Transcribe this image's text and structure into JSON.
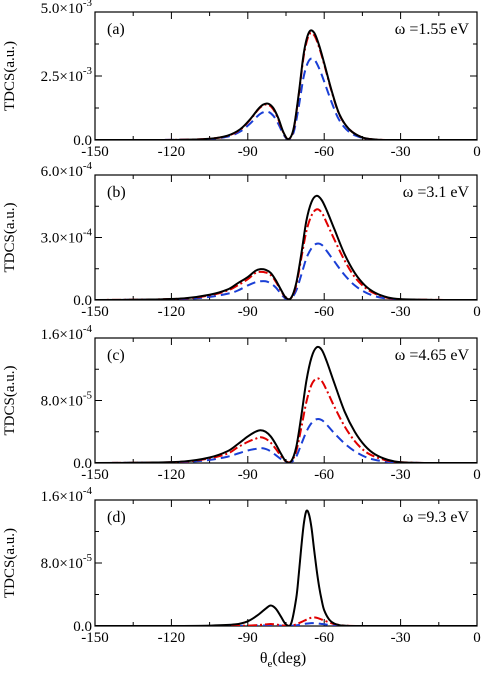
{
  "figure": {
    "xlabel_main": "θ",
    "xlabel_sub": "e",
    "xlabel_unit": "(deg)"
  },
  "series_styles": [
    {
      "color": "#000000",
      "dash": "solid"
    },
    {
      "color": "#e00000",
      "dash": "dash-dot"
    },
    {
      "color": "#1a3fd6",
      "dash": "dashed"
    }
  ],
  "chart_data": [
    {
      "type": "line",
      "panel_label": "(a)",
      "annotation_prefix": "ω =",
      "annotation_value": "1.55 eV",
      "ylabel": "TDCS(a.u.)",
      "xlim": [
        -150,
        0
      ],
      "xticks": [
        -150,
        -120,
        -90,
        -60,
        -30,
        0
      ],
      "xtick_labels": [
        "-150",
        "-120",
        "-90",
        "-60",
        "-30",
        "0"
      ],
      "ylim": [
        0,
        0.005
      ],
      "yticks": [
        {
          "value": 0,
          "mantissa": "0.0",
          "exponent": ""
        },
        {
          "value": 0.0025,
          "mantissa": "2.5×10",
          "exponent": "-3"
        },
        {
          "value": 0.005,
          "mantissa": "5.0×10",
          "exponent": "-3"
        }
      ],
      "x": [
        -150,
        -130,
        -115,
        -105,
        -98,
        -93,
        -89,
        -86,
        -84,
        -82,
        -80,
        -78,
        -76,
        -74,
        -72,
        -70,
        -68,
        -66,
        -64,
        -62,
        -60,
        -57,
        -54,
        -50,
        -45,
        -40,
        -35,
        -30,
        -20,
        -10,
        0
      ],
      "series": [
        {
          "values": [
            0,
            0,
            1e-05,
            5e-05,
            0.00017,
            0.00042,
            0.00082,
            0.0012,
            0.00138,
            0.00142,
            0.00125,
            0.00085,
            0.0003,
            3e-05,
            0.00045,
            0.0018,
            0.0034,
            0.0042,
            0.0042,
            0.0037,
            0.003,
            0.0019,
            0.001,
            0.0004,
            0.0001,
            2e-05,
            0,
            0,
            0,
            0,
            0
          ]
        },
        {
          "values": [
            0,
            0,
            1e-05,
            5e-05,
            0.00016,
            0.0004,
            0.0008,
            0.00118,
            0.00135,
            0.00138,
            0.0012,
            0.0008,
            0.00028,
            3e-05,
            0.00042,
            0.00175,
            0.0033,
            0.0041,
            0.0041,
            0.00362,
            0.00295,
            0.00187,
            0.00098,
            0.0004,
            0.0001,
            2e-05,
            0,
            0,
            0,
            0,
            0
          ]
        },
        {
          "values": [
            0,
            0,
            1e-05,
            4e-05,
            0.00013,
            0.00033,
            0.00065,
            0.00095,
            0.00108,
            0.0011,
            0.00095,
            0.00063,
            0.00022,
            2e-05,
            0.0003,
            0.0013,
            0.0025,
            0.0031,
            0.00315,
            0.0028,
            0.00228,
            0.00145,
            0.00076,
            0.0003,
            8e-05,
            1e-05,
            0,
            0,
            0,
            0,
            0
          ]
        }
      ]
    },
    {
      "type": "line",
      "panel_label": "(b)",
      "annotation_prefix": "ω =",
      "annotation_value": "3.1 eV",
      "ylabel": "TDCS(a.u.)",
      "xlim": [
        -150,
        0
      ],
      "xticks": [
        -150,
        -120,
        -90,
        -60,
        -30,
        0
      ],
      "xtick_labels": [
        "-150",
        "-120",
        "-90",
        "-60",
        "-30",
        "0"
      ],
      "ylim": [
        0,
        0.0006
      ],
      "yticks": [
        {
          "value": 0,
          "mantissa": "0.0",
          "exponent": ""
        },
        {
          "value": 0.0003,
          "mantissa": "3.0×10",
          "exponent": "-4"
        },
        {
          "value": 0.0006,
          "mantissa": "6.0×10",
          "exponent": "-4"
        }
      ],
      "x": [
        -150,
        -130,
        -115,
        -105,
        -98,
        -94,
        -90,
        -87,
        -85,
        -83,
        -81,
        -79,
        -77,
        -75,
        -73,
        -71,
        -69,
        -67,
        -65,
        -63,
        -61,
        -59,
        -56,
        -52,
        -48,
        -44,
        -40,
        -35,
        -30,
        -20,
        -10,
        0
      ],
      "series": [
        {
          "values": [
            0,
            2e-06,
            8e-06,
            2.5e-05,
            5e-05,
            8e-05,
            0.00011,
            0.00014,
            0.000148,
            0.000145,
            0.00013,
            9.5e-05,
            5e-05,
            1e-05,
            1e-05,
            8e-05,
            0.00022,
            0.00038,
            0.00047,
            0.0005,
            0.00048,
            0.00043,
            0.00034,
            0.00022,
            0.00013,
            7e-05,
            3.5e-05,
            1.2e-05,
            4e-06,
            1e-06,
            0,
            0
          ]
        },
        {
          "values": [
            0,
            2e-06,
            7e-06,
            2.2e-05,
            4.5e-05,
            7e-05,
            0.0001,
            0.00013,
            0.000135,
            0.000132,
            0.00012,
            8.8e-05,
            4.5e-05,
            1e-05,
            1e-05,
            7e-05,
            0.0002,
            0.00033,
            0.000405,
            0.000435,
            0.00042,
            0.00037,
            0.00029,
            0.00019,
            0.00011,
            6e-05,
            3e-05,
            1e-05,
            3e-06,
            1e-06,
            0,
            0
          ]
        },
        {
          "values": [
            0,
            1e-06,
            5e-06,
            1.5e-05,
            3e-05,
            4.5e-05,
            7e-05,
            8.5e-05,
            9e-05,
            9e-05,
            8e-05,
            6e-05,
            3e-05,
            5e-06,
            7e-06,
            4.5e-05,
            0.00012,
            0.0002,
            0.000248,
            0.00027,
            0.000265,
            0.000235,
            0.000185,
            0.00012,
            7e-05,
            3.8e-05,
            1.8e-05,
            6e-06,
            2e-06,
            0,
            0,
            0
          ]
        }
      ]
    },
    {
      "type": "line",
      "panel_label": "(c)",
      "annotation_prefix": "ω =",
      "annotation_value": "4.65 eV",
      "ylabel": "TDCS(a.u.)",
      "xlim": [
        -150,
        0
      ],
      "xticks": [
        -150,
        -120,
        -90,
        -60,
        -30,
        0
      ],
      "xtick_labels": [
        "-150",
        "-120",
        "-90",
        "-60",
        "-30",
        "0"
      ],
      "ylim": [
        0,
        0.00016
      ],
      "yticks": [
        {
          "value": 0,
          "mantissa": "0.0",
          "exponent": ""
        },
        {
          "value": 8e-05,
          "mantissa": "8.0×10",
          "exponent": "-5"
        },
        {
          "value": 0.00016,
          "mantissa": "1.6×10",
          "exponent": "-4"
        }
      ],
      "x": [
        -150,
        -130,
        -115,
        -105,
        -98,
        -94,
        -90,
        -87,
        -85,
        -83,
        -81,
        -79,
        -77,
        -75,
        -73,
        -71,
        -69,
        -67,
        -65,
        -63,
        -61,
        -59,
        -56,
        -52,
        -48,
        -44,
        -40,
        -35,
        -30,
        -20,
        -10,
        0
      ],
      "series": [
        {
          "values": [
            0,
            5e-07,
            2e-06,
            7e-06,
            1.5e-05,
            2.4e-05,
            3.4e-05,
            4e-05,
            4.2e-05,
            4e-05,
            3.4e-05,
            2.4e-05,
            1.2e-05,
            2e-06,
            2e-06,
            2e-05,
            6e-05,
            0.000105,
            0.000135,
            0.000148,
            0.000145,
            0.00013,
            0.000102,
            6.6e-05,
            4e-05,
            2.2e-05,
            1.1e-05,
            4e-06,
            1e-06,
            0,
            0,
            0
          ]
        },
        {
          "values": [
            0,
            4e-07,
            1.7e-06,
            6e-06,
            1.2e-05,
            2e-05,
            2.7e-05,
            3.1e-05,
            3.3e-05,
            3.1e-05,
            2.6e-05,
            1.8e-05,
            9e-06,
            2e-06,
            2e-06,
            1.5e-05,
            4.5e-05,
            7.8e-05,
            0.0001,
            0.000108,
            0.000105,
            9.3e-05,
            7.2e-05,
            4.7e-05,
            2.8e-05,
            1.5e-05,
            8e-06,
            3e-06,
            1e-06,
            0,
            0,
            0
          ]
        },
        {
          "values": [
            0,
            3e-07,
            1.2e-06,
            4e-06,
            8e-06,
            1.2e-05,
            1.6e-05,
            1.8e-05,
            1.9e-05,
            1.8e-05,
            1.5e-05,
            1e-05,
            5e-06,
            1e-06,
            1e-06,
            8e-06,
            2.4e-05,
            4e-05,
            5.1e-05,
            5.6e-05,
            5.5e-05,
            4.9e-05,
            3.8e-05,
            2.5e-05,
            1.5e-05,
            8e-06,
            4e-06,
            1.5e-06,
            5e-07,
            0,
            0,
            0
          ]
        }
      ]
    },
    {
      "type": "line",
      "panel_label": "(d)",
      "annotation_prefix": "ω =",
      "annotation_value": "9.3 eV",
      "ylabel": "TDCS(a.u.)",
      "xlim": [
        -150,
        0
      ],
      "xticks": [
        -150,
        -120,
        -90,
        -60,
        -30,
        0
      ],
      "xtick_labels": [
        "-150",
        "-120",
        "-90",
        "-60",
        "-30",
        "0"
      ],
      "ylim": [
        0,
        0.00016
      ],
      "yticks": [
        {
          "value": 0,
          "mantissa": "0.0",
          "exponent": ""
        },
        {
          "value": 8e-05,
          "mantissa": "8.0×10",
          "exponent": "-5"
        },
        {
          "value": 0.00016,
          "mantissa": "1.6×10",
          "exponent": "-4"
        }
      ],
      "x": [
        -150,
        -120,
        -105,
        -95,
        -90,
        -86,
        -83,
        -81,
        -79,
        -77,
        -75,
        -73,
        -71,
        -70,
        -69,
        -68,
        -67,
        -66,
        -65,
        -64,
        -63,
        -62,
        -61,
        -60,
        -58,
        -56,
        -54,
        -52,
        -50,
        -45,
        -40,
        -30,
        -15,
        0
      ],
      "series": [
        {
          "values": [
            0,
            0,
            5e-07,
            2e-06,
            6e-06,
            1.4e-05,
            2.2e-05,
            2.6e-05,
            2.2e-05,
            1.2e-05,
            2e-06,
            3e-06,
            3.5e-05,
            6.5e-05,
            0.0001,
            0.00013,
            0.000146,
            0.000142,
            0.000125,
            9.8e-05,
            7.2e-05,
            5e-05,
            3.3e-05,
            2e-05,
            8e-06,
            3e-06,
            1e-06,
            4e-07,
            0,
            0,
            0,
            0,
            0,
            0
          ]
        },
        {
          "values": [
            0,
            0,
            0,
            2e-07,
            5e-07,
            1.2e-06,
            2e-06,
            2.5e-06,
            2e-06,
            1e-06,
            3e-07,
            5e-07,
            2e-06,
            3.5e-06,
            5e-06,
            6.5e-06,
            8e-06,
            9.5e-06,
            1.05e-05,
            1.1e-05,
            1.05e-05,
            9.5e-06,
            8.2e-06,
            7e-06,
            4.5e-06,
            2.5e-06,
            1.2e-06,
            5e-07,
            2e-07,
            0,
            0,
            0,
            0,
            0
          ]
        },
        {
          "values": [
            0,
            0,
            0,
            1e-07,
            2e-07,
            5e-07,
            8e-07,
            1e-06,
            8e-07,
            4e-07,
            1e-07,
            2e-07,
            8e-07,
            1.3e-06,
            1.9e-06,
            2.5e-06,
            3e-06,
            3.4e-06,
            3.6e-06,
            3.6e-06,
            3.4e-06,
            3e-06,
            2.6e-06,
            2.2e-06,
            1.4e-06,
            8e-07,
            4e-07,
            2e-07,
            0,
            0,
            0,
            0,
            0,
            0
          ]
        }
      ]
    }
  ]
}
